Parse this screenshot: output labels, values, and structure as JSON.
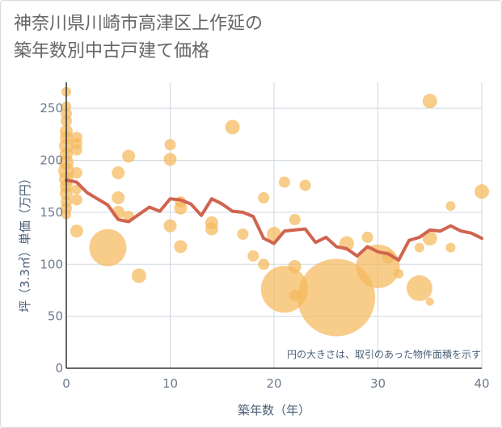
{
  "title": {
    "line1": "神奈川県川崎市高津区上作延の",
    "line2": "築年数別中古戸建て価格"
  },
  "chart_data": {
    "type": "scatter",
    "xlabel": "築年数（年）",
    "ylabel": "坪（3.3㎡）単価（万円）",
    "xlim": [
      0,
      40
    ],
    "ylim": [
      0,
      275
    ],
    "x_ticks": [
      0,
      10,
      20,
      30,
      40
    ],
    "y_ticks": [
      0,
      50,
      100,
      150,
      200,
      250
    ],
    "grid": true,
    "annotation": "円の大きさは、取引のあった物件面積を示す",
    "colors": {
      "bubble": "#f5b95c",
      "line": "#d0644f",
      "grid": "#cfd8e0",
      "axis": "#333333"
    },
    "bubbles": [
      {
        "x": 0,
        "y": 266,
        "s": 6
      },
      {
        "x": 0,
        "y": 252,
        "s": 6
      },
      {
        "x": 0,
        "y": 245,
        "s": 7
      },
      {
        "x": 0,
        "y": 238,
        "s": 7
      },
      {
        "x": 0,
        "y": 228,
        "s": 8
      },
      {
        "x": 0,
        "y": 222,
        "s": 8
      },
      {
        "x": 0,
        "y": 214,
        "s": 9
      },
      {
        "x": 0,
        "y": 206,
        "s": 8
      },
      {
        "x": 0,
        "y": 198,
        "s": 9
      },
      {
        "x": 0,
        "y": 190,
        "s": 10
      },
      {
        "x": 0,
        "y": 182,
        "s": 9
      },
      {
        "x": 0,
        "y": 175,
        "s": 8
      },
      {
        "x": 0,
        "y": 168,
        "s": 8
      },
      {
        "x": 0,
        "y": 160,
        "s": 7
      },
      {
        "x": 0,
        "y": 154,
        "s": 7
      },
      {
        "x": 0,
        "y": 148,
        "s": 6
      },
      {
        "x": 1,
        "y": 222,
        "s": 7
      },
      {
        "x": 1,
        "y": 216,
        "s": 7
      },
      {
        "x": 1,
        "y": 210,
        "s": 7
      },
      {
        "x": 1,
        "y": 188,
        "s": 7
      },
      {
        "x": 1,
        "y": 172,
        "s": 6
      },
      {
        "x": 1,
        "y": 162,
        "s": 7
      },
      {
        "x": 1,
        "y": 132,
        "s": 8
      },
      {
        "x": 4,
        "y": 116,
        "s": 23
      },
      {
        "x": 5,
        "y": 188,
        "s": 8
      },
      {
        "x": 5,
        "y": 164,
        "s": 8
      },
      {
        "x": 5,
        "y": 150,
        "s": 8
      },
      {
        "x": 6,
        "y": 204,
        "s": 8
      },
      {
        "x": 6,
        "y": 146,
        "s": 7
      },
      {
        "x": 7,
        "y": 89,
        "s": 9
      },
      {
        "x": 10,
        "y": 215,
        "s": 7
      },
      {
        "x": 10,
        "y": 201,
        "s": 8
      },
      {
        "x": 10,
        "y": 137,
        "s": 8
      },
      {
        "x": 11,
        "y": 160,
        "s": 7
      },
      {
        "x": 11,
        "y": 154,
        "s": 8
      },
      {
        "x": 11,
        "y": 117,
        "s": 8
      },
      {
        "x": 14,
        "y": 140,
        "s": 8
      },
      {
        "x": 14,
        "y": 134,
        "s": 8
      },
      {
        "x": 16,
        "y": 232,
        "s": 9
      },
      {
        "x": 17,
        "y": 129,
        "s": 7
      },
      {
        "x": 18,
        "y": 108,
        "s": 7
      },
      {
        "x": 19,
        "y": 164,
        "s": 7
      },
      {
        "x": 19,
        "y": 100,
        "s": 7
      },
      {
        "x": 20,
        "y": 129,
        "s": 9
      },
      {
        "x": 21,
        "y": 179,
        "s": 7
      },
      {
        "x": 21,
        "y": 76,
        "s": 29
      },
      {
        "x": 22,
        "y": 143,
        "s": 7
      },
      {
        "x": 22,
        "y": 98,
        "s": 8
      },
      {
        "x": 22,
        "y": 70,
        "s": 7
      },
      {
        "x": 23,
        "y": 176,
        "s": 7
      },
      {
        "x": 26,
        "y": 68,
        "s": 48
      },
      {
        "x": 27,
        "y": 120,
        "s": 9
      },
      {
        "x": 29,
        "y": 126,
        "s": 7
      },
      {
        "x": 30,
        "y": 98,
        "s": 27
      },
      {
        "x": 31,
        "y": 107,
        "s": 8
      },
      {
        "x": 32,
        "y": 91,
        "s": 6
      },
      {
        "x": 34,
        "y": 116,
        "s": 6
      },
      {
        "x": 34,
        "y": 77,
        "s": 16
      },
      {
        "x": 35,
        "y": 257,
        "s": 9
      },
      {
        "x": 35,
        "y": 125,
        "s": 9
      },
      {
        "x": 35,
        "y": 64,
        "s": 5
      },
      {
        "x": 37,
        "y": 156,
        "s": 6
      },
      {
        "x": 37,
        "y": 116,
        "s": 6
      },
      {
        "x": 40,
        "y": 170,
        "s": 9
      }
    ],
    "line": {
      "x": [
        0,
        1,
        2,
        3,
        4,
        5,
        6,
        7,
        8,
        9,
        10,
        11,
        12,
        13,
        14,
        15,
        16,
        17,
        18,
        19,
        20,
        21,
        22,
        23,
        24,
        25,
        26,
        27,
        28,
        29,
        30,
        31,
        32,
        33,
        34,
        35,
        36,
        37,
        38,
        39,
        40
      ],
      "y": [
        181,
        179,
        169,
        163,
        157,
        143,
        141,
        148,
        155,
        151,
        163,
        162,
        158,
        147,
        163,
        158,
        151,
        150,
        146,
        125,
        120,
        132,
        133,
        134,
        121,
        126,
        117,
        115,
        108,
        117,
        112,
        110,
        104,
        123,
        126,
        133,
        132,
        137,
        132,
        130,
        125
      ]
    }
  }
}
